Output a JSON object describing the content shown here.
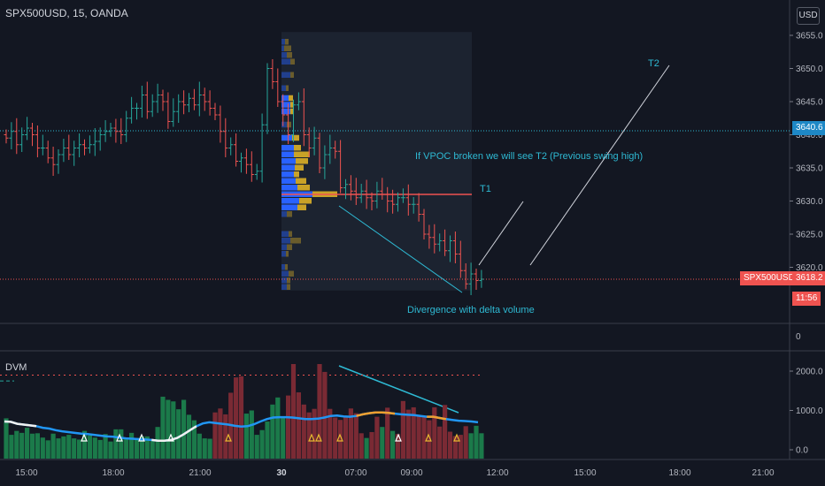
{
  "header": {
    "symbol_label": "SPX500USD, 15, OANDA",
    "currency_badge": "USD"
  },
  "indicator": {
    "name": "DVM"
  },
  "price_tags": {
    "symbol": "SPX500USD",
    "last_price": "3618.2",
    "countdown": "11:56",
    "level_price": "3640.6"
  },
  "annotations": {
    "vpoc_note": "If VPOC broken we will see T2 (Previous swing high)",
    "t1": "T1",
    "t2": "T2",
    "divergence": "Divergence with delta volume"
  },
  "colors": {
    "background": "#131722",
    "up": "#26a69a",
    "down": "#ef5350",
    "accent": "#2eb9d3",
    "volume_profile_blue": "#2962ff",
    "volume_profile_gold": "#c9a227",
    "price_tag_red": "#ef5350",
    "level_tag_blue": "#1e88c6"
  },
  "chart_data": [
    {
      "type": "candlestick",
      "title": "SPX500USD, 15, OANDA",
      "y_ticks": [
        3620,
        3625,
        3630,
        3635,
        3640,
        3645,
        3650,
        3655
      ],
      "y_tick_labels": [
        "3620.0",
        "3625.0",
        "3630.0",
        "3635.0",
        "3640.0",
        "3645.0",
        "3650.0",
        "3655.0"
      ],
      "ylim": [
        3616,
        3655.5
      ],
      "x_tick_labels": [
        "15:00",
        "18:00",
        "21:00",
        "30",
        "07:00",
        "09:00",
        "12:00",
        "15:00",
        "18:00",
        "21:00"
      ],
      "closes": [
        3639.5,
        3640.5,
        3638.5,
        3640,
        3641,
        3640,
        3638,
        3638,
        3636.5,
        3635.5,
        3637,
        3638,
        3637,
        3638,
        3638.5,
        3638,
        3638.5,
        3639,
        3640,
        3640.5,
        3641,
        3640.5,
        3640,
        3642.5,
        3644,
        3644,
        3646,
        3643.5,
        3645,
        3646,
        3645,
        3642,
        3643.5,
        3645,
        3644.5,
        3645.5,
        3644.5,
        3646,
        3645,
        3644,
        3643,
        3640.5,
        3638,
        3638.5,
        3636,
        3636.5,
        3635.5,
        3634,
        3634.5,
        3641.5,
        3650,
        3648,
        3645,
        3643,
        3640,
        3644.5,
        3645,
        3640,
        3638,
        3639.5,
        3635,
        3637,
        3638,
        3637.5,
        3632,
        3632.5,
        3631.5,
        3630.5,
        3631.5,
        3630.5,
        3630,
        3631.5,
        3631,
        3630,
        3629.5,
        3630.5,
        3630.5,
        3629.5,
        3629.5,
        3628,
        3625,
        3624.5,
        3623.5,
        3624,
        3622.5,
        3624,
        3622,
        3619.5,
        3617.5,
        3619,
        3618,
        3618.2
      ],
      "last_price": 3618.2,
      "horizontal_levels": [
        3640.6,
        3618.2
      ],
      "vpoc_line": 3631,
      "volume_profile_range": [
        3616.5,
        3655.5
      ]
    },
    {
      "type": "bar",
      "title": "DVM",
      "y_ticks": [
        0,
        1000,
        2000
      ],
      "y_tick_labels": [
        "0.0",
        "1000.0",
        "2000.0"
      ],
      "ylim": [
        -250,
        2450
      ],
      "top_panel_tick_label": "0",
      "volumes": [
        800,
        380,
        480,
        430,
        560,
        410,
        420,
        310,
        240,
        410,
        290,
        340,
        380,
        290,
        260,
        480,
        360,
        310,
        250,
        400,
        210,
        520,
        520,
        290,
        430,
        300,
        340,
        340,
        260,
        580,
        1350,
        1270,
        1230,
        1030,
        1270,
        890,
        750,
        410,
        290,
        280,
        950,
        1050,
        900,
        1450,
        1840,
        1870,
        920,
        1000,
        380,
        500,
        720,
        1150,
        1330,
        810,
        1380,
        2180,
        1460,
        1150,
        950,
        1040,
        2180,
        1980,
        1040,
        820,
        760,
        820,
        1050,
        930,
        420,
        300,
        450,
        840,
        580,
        1070,
        480,
        400,
        1240,
        1020,
        1080,
        880,
        860,
        750,
        1080,
        590,
        1140,
        460,
        350,
        380,
        600,
        420,
        610,
        420
      ],
      "bar_colors": [
        "green",
        "green",
        "green",
        "green",
        "green",
        "green",
        "green",
        "green",
        "green",
        "green",
        "green",
        "green",
        "green",
        "green",
        "green",
        "green",
        "green",
        "green",
        "green",
        "green",
        "green",
        "green",
        "green",
        "green",
        "green",
        "green",
        "green",
        "green",
        "green",
        "green",
        "green",
        "green",
        "green",
        "green",
        "green",
        "green",
        "green",
        "green",
        "green",
        "green",
        "red",
        "red",
        "red",
        "red",
        "red",
        "red",
        "green",
        "green",
        "green",
        "green",
        "green",
        "green",
        "green",
        "green",
        "red",
        "red",
        "red",
        "red",
        "red",
        "red",
        "red",
        "red",
        "red",
        "red",
        "red",
        "red",
        "red",
        "red",
        "red",
        "green",
        "red",
        "red",
        "green",
        "red",
        "green",
        "red",
        "red",
        "red",
        "red",
        "red",
        "red",
        "red",
        "red",
        "red",
        "red",
        "red",
        "red",
        "red",
        "red",
        "green",
        "green",
        "green"
      ],
      "delta_average": [
        720,
        710,
        660,
        640,
        620,
        600,
        560,
        540,
        500,
        470,
        450,
        430,
        410,
        400,
        380,
        360,
        340,
        330,
        310,
        290,
        280,
        270,
        260,
        250,
        230,
        230,
        250,
        300,
        390,
        500,
        600,
        670,
        700,
        680,
        660,
        640,
        610,
        590,
        600,
        650,
        720,
        780,
        820,
        830,
        830,
        820,
        800,
        780,
        780,
        790,
        820,
        860,
        870,
        850,
        840,
        860,
        900,
        930,
        950,
        950,
        940,
        920,
        900,
        890,
        880,
        860,
        840,
        840,
        810,
        780,
        760,
        740,
        730,
        720,
        700
      ],
      "upper_threshold": 1900,
      "lower_threshold": 1750
    }
  ]
}
